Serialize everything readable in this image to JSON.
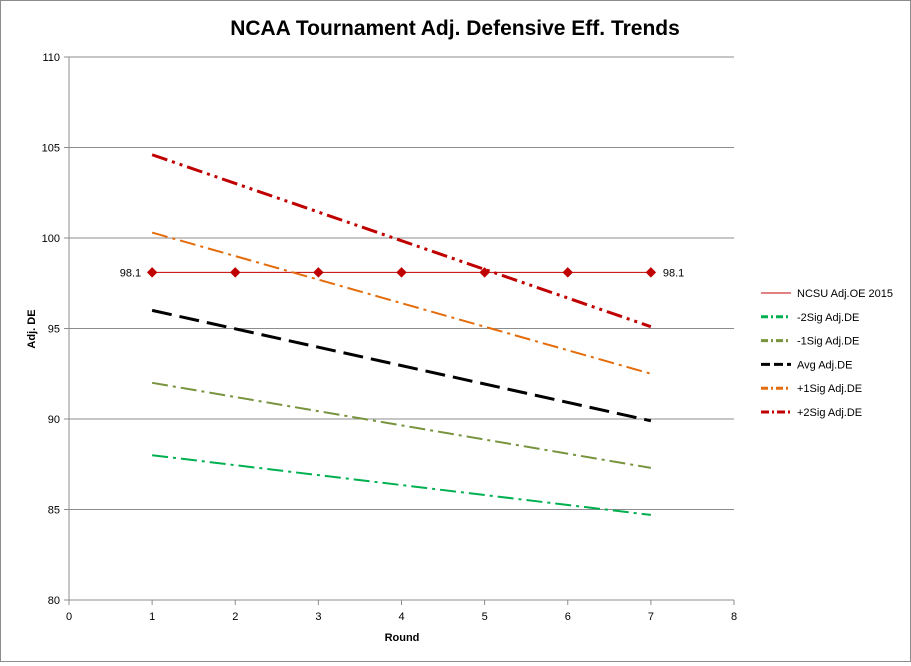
{
  "chart_data": {
    "type": "line",
    "title": "NCAA Tournament Adj. Defensive Eff. Trends",
    "xlabel": "Round",
    "ylabel": "Adj. DE",
    "xlim": [
      0,
      8
    ],
    "ylim": [
      80,
      110
    ],
    "x_ticks": [
      0,
      1,
      2,
      3,
      4,
      5,
      6,
      7,
      8
    ],
    "y_ticks": [
      80,
      85,
      90,
      95,
      100,
      105,
      110
    ],
    "grid": "horizontal",
    "legend_position": "right",
    "series": [
      {
        "name": "NCSU Adj.OE 2015",
        "color": "#c00000",
        "style": "solid",
        "marker": "diamond",
        "x": [
          1,
          2,
          3,
          4,
          5,
          6,
          7
        ],
        "values": [
          98.1,
          98.1,
          98.1,
          98.1,
          98.1,
          98.1,
          98.1
        ],
        "data_labels": [
          {
            "index": 0,
            "text": "98.1",
            "side": "left"
          },
          {
            "index": 6,
            "text": "98.1",
            "side": "right"
          }
        ]
      },
      {
        "name": "-2Sig Adj.DE",
        "color": "#00b050",
        "style": "dashdot",
        "x": [
          1,
          7
        ],
        "values": [
          88.0,
          84.7
        ]
      },
      {
        "name": "-1Sig Adj.DE",
        "color": "#77933c",
        "style": "dashdot",
        "x": [
          1,
          7
        ],
        "values": [
          92.0,
          87.3
        ]
      },
      {
        "name": "Avg Adj.DE",
        "color": "#000000",
        "style": "dash",
        "x": [
          1,
          7
        ],
        "values": [
          96.0,
          89.9
        ]
      },
      {
        "name": "+1Sig Adj.DE",
        "color": "#e46c0a",
        "style": "dashdot",
        "x": [
          1,
          7
        ],
        "values": [
          100.3,
          92.5
        ]
      },
      {
        "name": "+2Sig Adj.DE",
        "color": "#c00000",
        "style": "dashdotdot",
        "x": [
          1,
          7
        ],
        "values": [
          104.6,
          95.1
        ]
      }
    ]
  },
  "colors": {
    "grid": "#8c8c8c",
    "axis": "#8c8c8c",
    "marker": "#c00000"
  }
}
